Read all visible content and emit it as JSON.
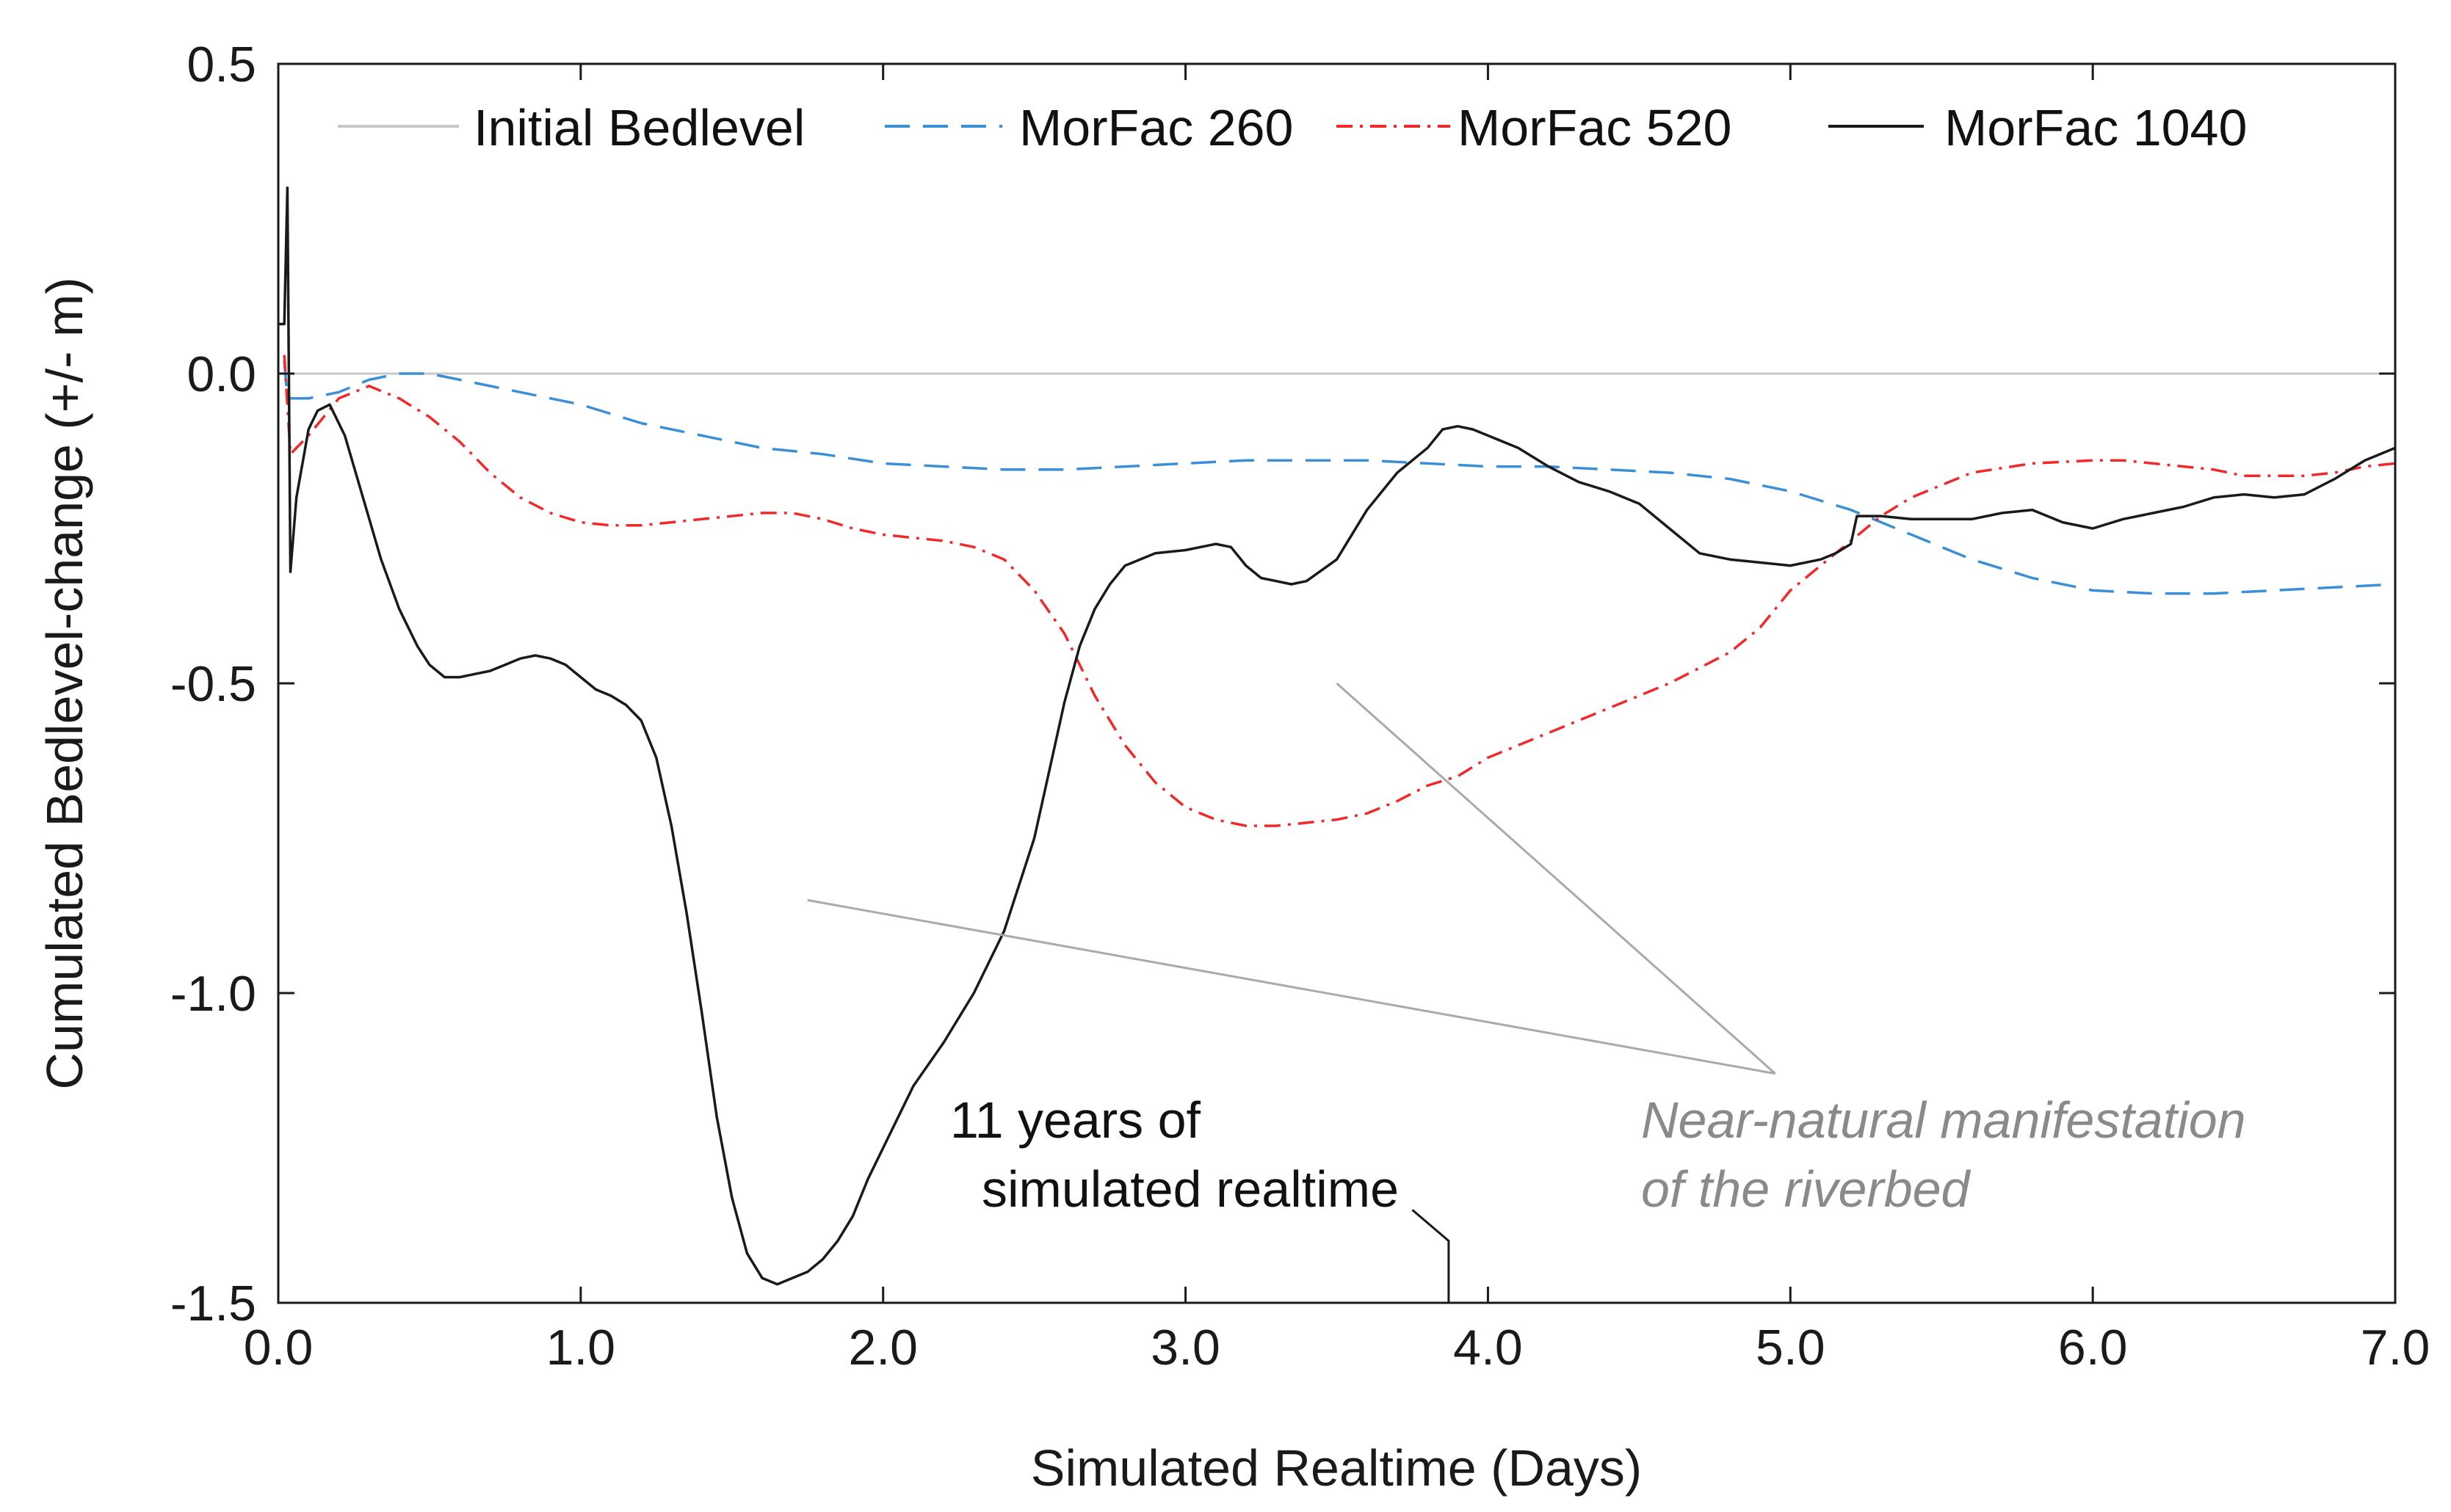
{
  "chart_data": {
    "type": "line",
    "title": "",
    "xlabel": "Simulated Realtime (Days)",
    "ylabel": "Cumulated Bedlevel-change (+/- m)",
    "xlim": [
      0,
      7
    ],
    "ylim": [
      -1.5,
      0.5
    ],
    "x_ticks": [
      "0.0",
      "1.0",
      "2.0",
      "3.0",
      "4.0",
      "5.0",
      "6.0",
      "7.0"
    ],
    "y_ticks": [
      "0.5",
      "0.0",
      "-0.5",
      "-1.0",
      "-1.5"
    ],
    "x_tick_values": [
      0,
      1,
      2,
      3,
      4,
      5,
      6,
      7
    ],
    "y_tick_values": [
      0.5,
      0.0,
      -0.5,
      -1.0,
      -1.5
    ],
    "grid": false,
    "legend_position": "top",
    "series": [
      {
        "name": "Initial Bedlevel",
        "color": "#c8c8c8",
        "dash": "solid",
        "points": [
          [
            0,
            0
          ],
          [
            7,
            0
          ]
        ]
      },
      {
        "name": "MorFac 260",
        "color": "#3a8fd6",
        "dash": "dashed",
        "points": [
          [
            0.02,
            0.02
          ],
          [
            0.03,
            -0.04
          ],
          [
            0.1,
            -0.04
          ],
          [
            0.2,
            -0.03
          ],
          [
            0.3,
            -0.01
          ],
          [
            0.4,
            0.0
          ],
          [
            0.5,
            0.0
          ],
          [
            0.6,
            -0.01
          ],
          [
            0.8,
            -0.03
          ],
          [
            1.0,
            -0.05
          ],
          [
            1.2,
            -0.08
          ],
          [
            1.4,
            -0.1
          ],
          [
            1.6,
            -0.12
          ],
          [
            1.8,
            -0.13
          ],
          [
            2.0,
            -0.145
          ],
          [
            2.2,
            -0.15
          ],
          [
            2.4,
            -0.155
          ],
          [
            2.6,
            -0.155
          ],
          [
            2.8,
            -0.15
          ],
          [
            3.0,
            -0.145
          ],
          [
            3.2,
            -0.14
          ],
          [
            3.4,
            -0.14
          ],
          [
            3.6,
            -0.14
          ],
          [
            3.8,
            -0.145
          ],
          [
            4.0,
            -0.15
          ],
          [
            4.2,
            -0.15
          ],
          [
            4.4,
            -0.155
          ],
          [
            4.6,
            -0.16
          ],
          [
            4.8,
            -0.17
          ],
          [
            5.0,
            -0.19
          ],
          [
            5.2,
            -0.22
          ],
          [
            5.4,
            -0.26
          ],
          [
            5.6,
            -0.3
          ],
          [
            5.8,
            -0.33
          ],
          [
            6.0,
            -0.35
          ],
          [
            6.2,
            -0.355
          ],
          [
            6.4,
            -0.355
          ],
          [
            6.6,
            -0.35
          ],
          [
            6.8,
            -0.345
          ],
          [
            7.0,
            -0.34
          ]
        ]
      },
      {
        "name": "MorFac 520",
        "color": "#f02a2a",
        "dash": "dashdot",
        "points": [
          [
            0.02,
            0.03
          ],
          [
            0.04,
            -0.13
          ],
          [
            0.1,
            -0.1
          ],
          [
            0.2,
            -0.04
          ],
          [
            0.3,
            -0.02
          ],
          [
            0.4,
            -0.04
          ],
          [
            0.5,
            -0.07
          ],
          [
            0.6,
            -0.11
          ],
          [
            0.7,
            -0.16
          ],
          [
            0.8,
            -0.2
          ],
          [
            0.9,
            -0.225
          ],
          [
            1.0,
            -0.24
          ],
          [
            1.1,
            -0.245
          ],
          [
            1.2,
            -0.245
          ],
          [
            1.3,
            -0.24
          ],
          [
            1.4,
            -0.235
          ],
          [
            1.5,
            -0.23
          ],
          [
            1.6,
            -0.225
          ],
          [
            1.7,
            -0.225
          ],
          [
            1.8,
            -0.235
          ],
          [
            1.9,
            -0.25
          ],
          [
            2.0,
            -0.26
          ],
          [
            2.1,
            -0.265
          ],
          [
            2.2,
            -0.27
          ],
          [
            2.3,
            -0.28
          ],
          [
            2.4,
            -0.3
          ],
          [
            2.5,
            -0.35
          ],
          [
            2.6,
            -0.42
          ],
          [
            2.7,
            -0.52
          ],
          [
            2.8,
            -0.6
          ],
          [
            2.9,
            -0.66
          ],
          [
            3.0,
            -0.7
          ],
          [
            3.1,
            -0.72
          ],
          [
            3.2,
            -0.73
          ],
          [
            3.3,
            -0.73
          ],
          [
            3.4,
            -0.725
          ],
          [
            3.5,
            -0.72
          ],
          [
            3.6,
            -0.71
          ],
          [
            3.7,
            -0.69
          ],
          [
            3.8,
            -0.665
          ],
          [
            3.9,
            -0.65
          ],
          [
            4.0,
            -0.62
          ],
          [
            4.2,
            -0.58
          ],
          [
            4.4,
            -0.54
          ],
          [
            4.6,
            -0.5
          ],
          [
            4.8,
            -0.45
          ],
          [
            4.9,
            -0.41
          ],
          [
            5.0,
            -0.35
          ],
          [
            5.1,
            -0.31
          ],
          [
            5.2,
            -0.27
          ],
          [
            5.3,
            -0.23
          ],
          [
            5.4,
            -0.2
          ],
          [
            5.5,
            -0.18
          ],
          [
            5.6,
            -0.16
          ],
          [
            5.8,
            -0.145
          ],
          [
            6.0,
            -0.14
          ],
          [
            6.1,
            -0.14
          ],
          [
            6.2,
            -0.145
          ],
          [
            6.4,
            -0.155
          ],
          [
            6.5,
            -0.165
          ],
          [
            6.6,
            -0.165
          ],
          [
            6.7,
            -0.165
          ],
          [
            6.8,
            -0.16
          ],
          [
            6.9,
            -0.15
          ],
          [
            7.0,
            -0.145
          ]
        ]
      },
      {
        "name": "MorFac 1040",
        "color": "#1a1a1a",
        "dash": "solid",
        "points": [
          [
            0.0,
            0.08
          ],
          [
            0.02,
            0.08
          ],
          [
            0.03,
            0.3
          ],
          [
            0.035,
            0.0
          ],
          [
            0.04,
            -0.32
          ],
          [
            0.06,
            -0.2
          ],
          [
            0.1,
            -0.09
          ],
          [
            0.13,
            -0.06
          ],
          [
            0.17,
            -0.05
          ],
          [
            0.22,
            -0.1
          ],
          [
            0.28,
            -0.2
          ],
          [
            0.34,
            -0.3
          ],
          [
            0.4,
            -0.38
          ],
          [
            0.46,
            -0.44
          ],
          [
            0.5,
            -0.47
          ],
          [
            0.55,
            -0.49
          ],
          [
            0.6,
            -0.49
          ],
          [
            0.65,
            -0.485
          ],
          [
            0.7,
            -0.48
          ],
          [
            0.75,
            -0.47
          ],
          [
            0.8,
            -0.46
          ],
          [
            0.85,
            -0.455
          ],
          [
            0.9,
            -0.46
          ],
          [
            0.95,
            -0.47
          ],
          [
            1.0,
            -0.49
          ],
          [
            1.05,
            -0.51
          ],
          [
            1.1,
            -0.52
          ],
          [
            1.15,
            -0.535
          ],
          [
            1.2,
            -0.56
          ],
          [
            1.25,
            -0.62
          ],
          [
            1.3,
            -0.73
          ],
          [
            1.35,
            -0.87
          ],
          [
            1.4,
            -1.03
          ],
          [
            1.45,
            -1.2
          ],
          [
            1.5,
            -1.33
          ],
          [
            1.55,
            -1.42
          ],
          [
            1.6,
            -1.46
          ],
          [
            1.65,
            -1.47
          ],
          [
            1.7,
            -1.46
          ],
          [
            1.75,
            -1.45
          ],
          [
            1.8,
            -1.43
          ],
          [
            1.85,
            -1.4
          ],
          [
            1.9,
            -1.36
          ],
          [
            1.95,
            -1.3
          ],
          [
            2.0,
            -1.25
          ],
          [
            2.05,
            -1.2
          ],
          [
            2.1,
            -1.15
          ],
          [
            2.2,
            -1.08
          ],
          [
            2.3,
            -1.0
          ],
          [
            2.4,
            -0.9
          ],
          [
            2.5,
            -0.75
          ],
          [
            2.55,
            -0.64
          ],
          [
            2.6,
            -0.53
          ],
          [
            2.65,
            -0.44
          ],
          [
            2.7,
            -0.38
          ],
          [
            2.75,
            -0.34
          ],
          [
            2.8,
            -0.31
          ],
          [
            2.9,
            -0.29
          ],
          [
            3.0,
            -0.285
          ],
          [
            3.05,
            -0.28
          ],
          [
            3.1,
            -0.275
          ],
          [
            3.15,
            -0.28
          ],
          [
            3.2,
            -0.31
          ],
          [
            3.25,
            -0.33
          ],
          [
            3.3,
            -0.335
          ],
          [
            3.35,
            -0.34
          ],
          [
            3.4,
            -0.335
          ],
          [
            3.5,
            -0.3
          ],
          [
            3.6,
            -0.22
          ],
          [
            3.7,
            -0.16
          ],
          [
            3.8,
            -0.12
          ],
          [
            3.85,
            -0.09
          ],
          [
            3.9,
            -0.085
          ],
          [
            3.95,
            -0.09
          ],
          [
            4.0,
            -0.1
          ],
          [
            4.1,
            -0.12
          ],
          [
            4.2,
            -0.15
          ],
          [
            4.3,
            -0.175
          ],
          [
            4.4,
            -0.19
          ],
          [
            4.5,
            -0.21
          ],
          [
            4.6,
            -0.25
          ],
          [
            4.7,
            -0.29
          ],
          [
            4.8,
            -0.3
          ],
          [
            4.9,
            -0.305
          ],
          [
            5.0,
            -0.31
          ],
          [
            5.1,
            -0.3
          ],
          [
            5.15,
            -0.29
          ],
          [
            5.2,
            -0.275
          ],
          [
            5.22,
            -0.23
          ],
          [
            5.3,
            -0.23
          ],
          [
            5.4,
            -0.235
          ],
          [
            5.5,
            -0.235
          ],
          [
            5.6,
            -0.235
          ],
          [
            5.7,
            -0.225
          ],
          [
            5.8,
            -0.22
          ],
          [
            5.9,
            -0.24
          ],
          [
            6.0,
            -0.25
          ],
          [
            6.1,
            -0.235
          ],
          [
            6.2,
            -0.225
          ],
          [
            6.3,
            -0.215
          ],
          [
            6.4,
            -0.2
          ],
          [
            6.5,
            -0.195
          ],
          [
            6.6,
            -0.2
          ],
          [
            6.7,
            -0.195
          ],
          [
            6.8,
            -0.17
          ],
          [
            6.9,
            -0.14
          ],
          [
            7.0,
            -0.12
          ]
        ]
      }
    ],
    "annotations": [
      {
        "kind": "text",
        "style": "dark",
        "lines": [
          "11 years of",
          "simulated realtime"
        ]
      },
      {
        "kind": "text",
        "style": "grey-italic",
        "lines": [
          "Near-natural manifestation",
          "of the riverbed"
        ]
      },
      {
        "kind": "leader",
        "color": "#aaaaaa",
        "from": [
          1.75,
          -0.85
        ],
        "to": [
          4.95,
          -1.13
        ]
      },
      {
        "kind": "leader",
        "color": "#aaaaaa",
        "from": [
          3.5,
          -0.5
        ],
        "to": [
          4.95,
          -1.13
        ]
      },
      {
        "kind": "leader",
        "color": "#1a1a1a",
        "points": [
          [
            3.75,
            -1.35
          ],
          [
            3.87,
            -1.4
          ],
          [
            3.87,
            -1.5
          ]
        ]
      }
    ]
  }
}
